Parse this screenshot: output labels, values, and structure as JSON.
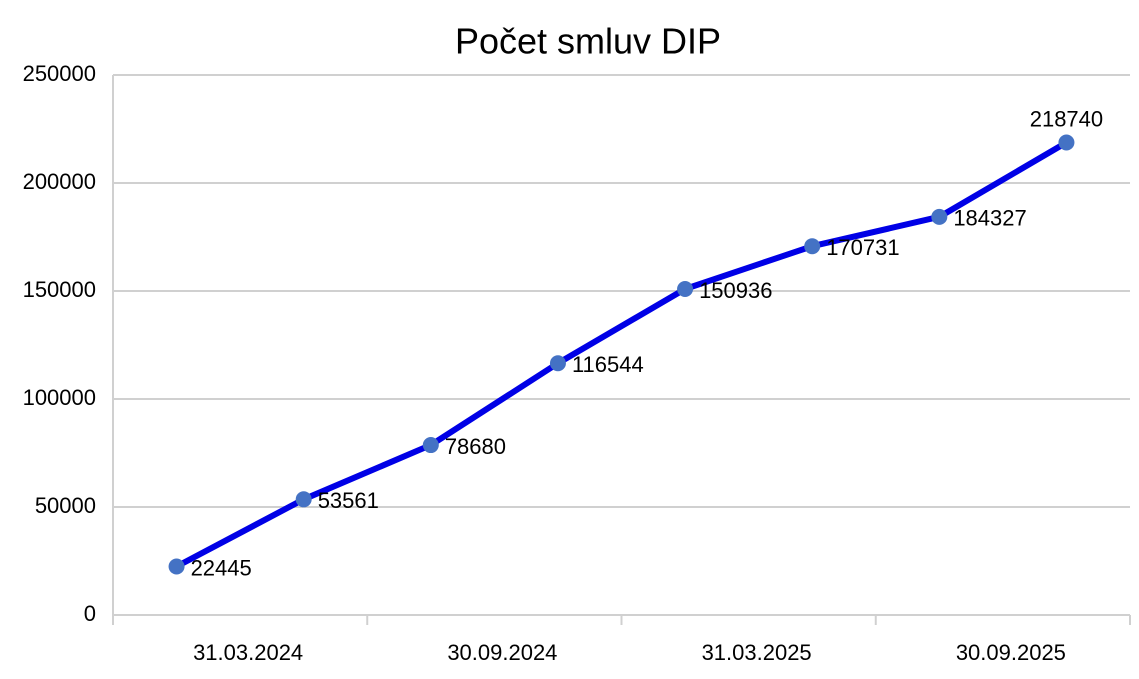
{
  "chart_data": {
    "type": "line",
    "title": "Počet smluv DIP",
    "categories": [
      null,
      "31.03.2024",
      null,
      "30.09.2024",
      null,
      "31.03.2025",
      null,
      "30.09.2025"
    ],
    "series": [
      {
        "name": "Počet smluv DIP",
        "color": "#0000e6",
        "marker_color": "#4472c4",
        "values": [
          22445,
          53561,
          78680,
          116544,
          150936,
          170731,
          184327,
          218740
        ]
      }
    ],
    "ylim": [
      0,
      250000
    ],
    "yticks": [
      0,
      50000,
      100000,
      150000,
      200000,
      250000
    ],
    "grid": true
  }
}
